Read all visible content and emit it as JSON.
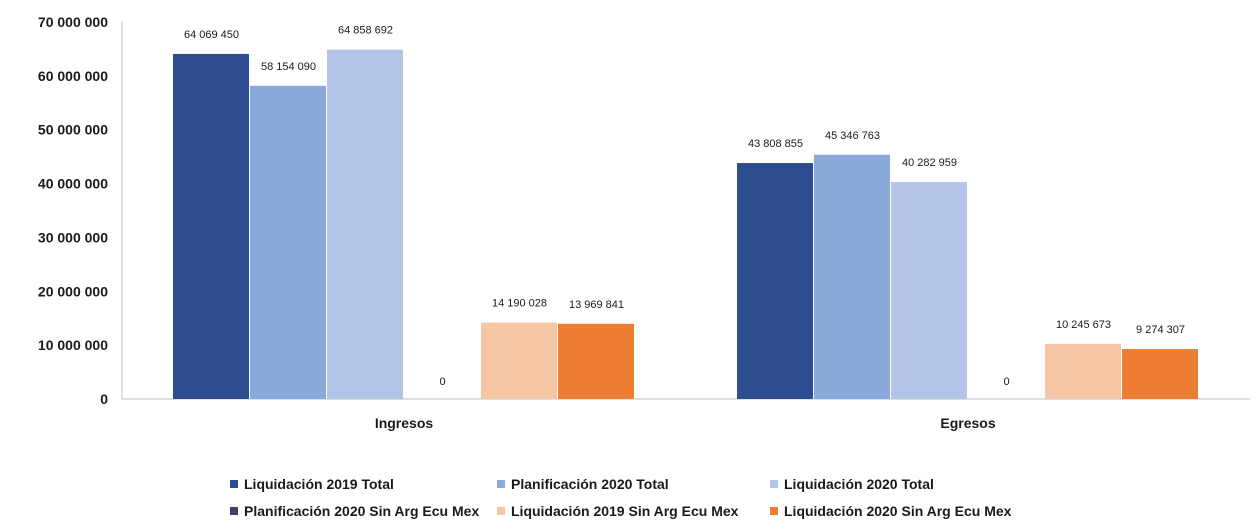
{
  "chart_data": {
    "type": "bar",
    "categories": [
      "Ingresos",
      "Egresos"
    ],
    "series": [
      {
        "name": "Liquidación 2019 Total",
        "color": "#2e4d91",
        "values": [
          64069450,
          43808855
        ],
        "labels": [
          "64 069 450",
          "43 808 855"
        ]
      },
      {
        "name": "Planificación 2020 Total",
        "color": "#8aa9db",
        "values": [
          58154090,
          45346763
        ],
        "labels": [
          "58 154 090",
          "45 346 763"
        ]
      },
      {
        "name": "Liquidación 2020 Total",
        "color": "#b2c5e8",
        "values": [
          64858692,
          40282959
        ],
        "labels": [
          "64 858 692",
          "40 282 959"
        ]
      },
      {
        "name": "Planificación 2020 Sin Arg Ecu Mex",
        "color": "#4a3b6b",
        "values": [
          0,
          0
        ],
        "labels": [
          "0",
          "0"
        ]
      },
      {
        "name": "Liquidación  2019 Sin Arg Ecu Mex",
        "color": "#f5c6a5",
        "values": [
          14190028,
          10245673
        ],
        "labels": [
          "14 190 028",
          "10 245 673"
        ]
      },
      {
        "name": "Liquidación  2020 Sin Arg Ecu Mex",
        "color": "#ed7d31",
        "values": [
          13969841,
          9274307
        ],
        "labels": [
          "13 969 841",
          "9 274 307"
        ]
      }
    ],
    "ylim": [
      0,
      70000000
    ],
    "yticks": [
      0,
      10000000,
      20000000,
      30000000,
      40000000,
      50000000,
      60000000,
      70000000
    ],
    "ytick_labels": [
      "0",
      "10 000 000",
      "20 000 000",
      "30 000 000",
      "40 000 000",
      "50 000 000",
      "60 000 000",
      "70 000 000"
    ],
    "legend_position": "bottom",
    "grid": false
  }
}
